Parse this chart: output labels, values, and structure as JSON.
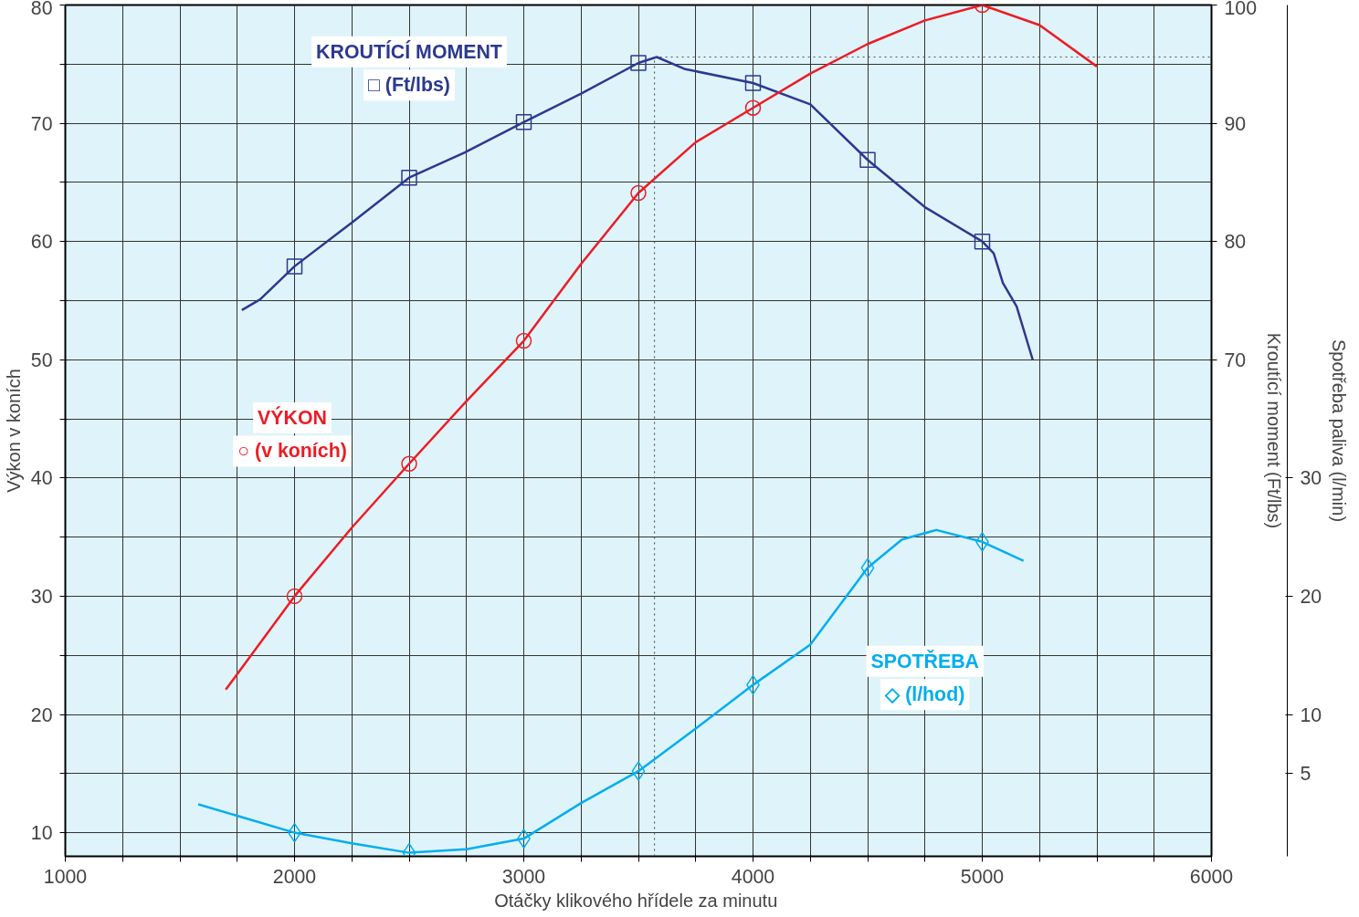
{
  "chart_data": {
    "type": "line",
    "xlabel": "Otáčky  klikového hřídele za minutu",
    "ylabel": "Výkon v koních",
    "y2label": "Kroutící moment (Ft/lbs)",
    "y3label": "Spotřeba paliva (l/min)",
    "xlim": [
      1000,
      6000
    ],
    "xticks": [
      1000,
      {
        "value": 1250,
        "label": null
      },
      {
        "value": 1500,
        "label": null
      },
      {
        "value": 1750,
        "label": null
      },
      2000,
      {
        "value": 2250,
        "label": null
      },
      {
        "value": 2500,
        "label": null
      },
      {
        "value": 2750,
        "label": null
      },
      3000,
      {
        "value": 3250,
        "label": null
      },
      {
        "value": 3500,
        "label": null
      },
      {
        "value": 3750,
        "label": null
      },
      4000,
      {
        "value": 4250,
        "label": null
      },
      {
        "value": 4500,
        "label": null
      },
      {
        "value": 4750,
        "label": null
      },
      5000,
      {
        "value": 5250,
        "label": null
      },
      {
        "value": 5500,
        "label": null
      },
      {
        "value": 5750,
        "label": null
      },
      6000
    ],
    "ylim": [
      8,
      80
    ],
    "yticks": [
      10,
      {
        "value": 15,
        "label": null
      },
      20,
      {
        "value": 25,
        "label": null
      },
      30,
      {
        "value": 35,
        "label": null
      },
      40,
      {
        "value": 45,
        "label": null
      },
      50,
      {
        "value": 55,
        "label": null
      },
      60,
      {
        "value": 65,
        "label": null
      },
      70,
      {
        "value": 75,
        "label": null
      },
      80
    ],
    "y2lim": [
      28,
      100
    ],
    "y2ticks": [
      70,
      80,
      90,
      100
    ],
    "y3lim": [
      -2,
      70
    ],
    "y3ticks": [
      5,
      10,
      20,
      30
    ],
    "grid": true,
    "series": [
      {
        "axis": "y2",
        "color": "#2b3990",
        "x": [
          1770,
          1850,
          2000,
          2250,
          2500,
          2750,
          3000,
          3250,
          3500,
          3580,
          3700,
          4000,
          4250,
          4500,
          4750,
          5000,
          5050,
          5090,
          5150,
          5220
        ],
        "values": [
          74.2,
          75.1,
          77.9,
          81.6,
          85.4,
          87.6,
          90.1,
          92.5,
          95.1,
          95.6,
          94.6,
          93.4,
          91.6,
          86.9,
          82.9,
          80,
          79,
          76.5,
          74.5,
          70
        ]
      },
      {
        "color": "#ed1c24",
        "x": [
          1700,
          2000,
          2250,
          2500,
          2750,
          3000,
          3250,
          3500,
          3750,
          4000,
          4250,
          4500,
          4750,
          5000,
          5250,
          5500
        ],
        "values": [
          22.1,
          30,
          35.8,
          41.2,
          46.5,
          51.6,
          58.1,
          64.1,
          68.4,
          71.3,
          74.2,
          76.7,
          78.7,
          80,
          78.3,
          74.8
        ]
      },
      {
        "axis": "y3",
        "color": "#00aeef",
        "x": [
          1580,
          2000,
          2250,
          2500,
          2750,
          3000,
          3250,
          3500,
          3750,
          4000,
          4250,
          4500,
          4650,
          4800,
          5000,
          5180
        ],
        "values": [
          2.4,
          0,
          -0.9,
          -1.7,
          -1.4,
          -0.5,
          2.5,
          5.2,
          8.8,
          12.5,
          15.9,
          22.4,
          24.8,
          25.6,
          24.6,
          23
        ]
      },
      {
        "type": "scatter",
        "axis": "y2",
        "marker": "square",
        "color": "#2b3990",
        "x": [
          2000,
          2500,
          3000,
          3500,
          4000,
          4500,
          5000
        ],
        "values": [
          77.9,
          85.4,
          90.1,
          95.1,
          93.4,
          86.9,
          80
        ]
      },
      {
        "type": "scatter",
        "marker": "circle",
        "color": "#ed1c24",
        "x": [
          2000,
          2500,
          3000,
          3500,
          4000,
          5000
        ],
        "values": [
          30,
          41.2,
          51.6,
          64.1,
          71.3,
          80
        ]
      },
      {
        "type": "scatter",
        "axis": "y3",
        "marker": "diamond",
        "color": "#00aeef",
        "x": [
          2000,
          2500,
          3000,
          3500,
          4000,
          4500,
          5000
        ],
        "values": [
          0,
          -1.7,
          -0.5,
          5.2,
          12.5,
          22.4,
          24.6
        ]
      }
    ],
    "ref_lines": [
      {
        "axis": "x",
        "value": 3570,
        "line_style": "dotted",
        "color": "#555555"
      },
      {
        "axis": "y2",
        "value": 95.6,
        "line_style": "dotted",
        "color": "#555555"
      }
    ],
    "annotations": [
      "KROUTÍCÍ MOMENT",
      "□ (Ft/lbs)",
      "VÝKON",
      "○ (v koních)",
      "SPOTŘEBA",
      "◇ (l/hod)"
    ]
  }
}
